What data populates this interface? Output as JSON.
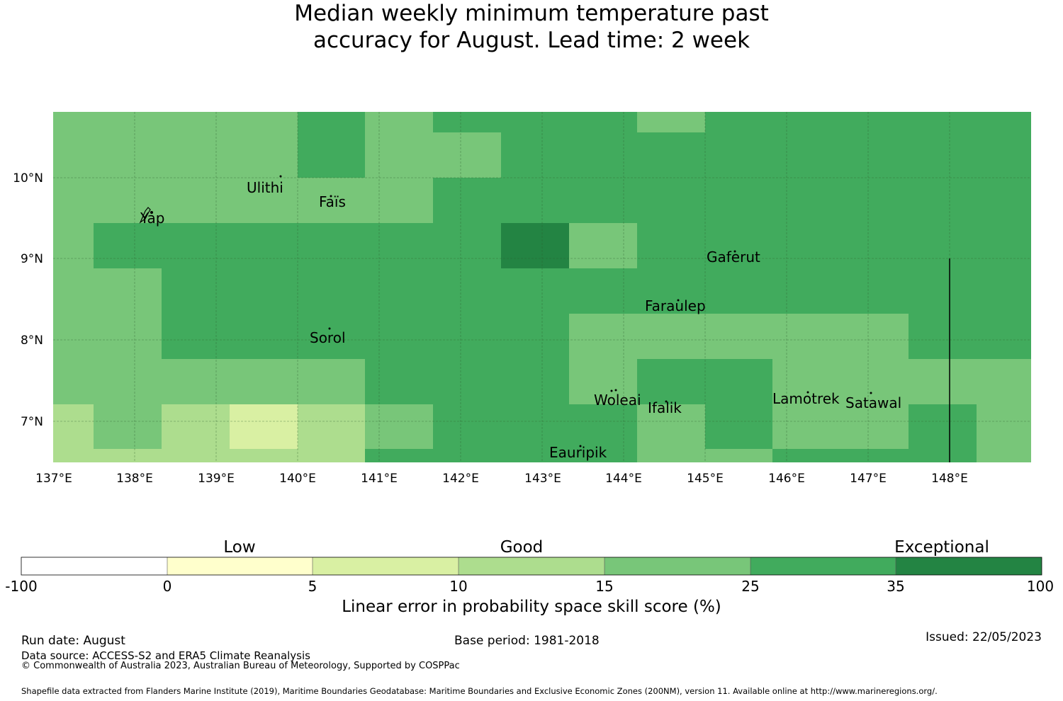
{
  "title": {
    "line1": "Median weekly minimum temperature past",
    "line2": "accuracy for August. Lead time: 2 week"
  },
  "map": {
    "lat_ticks": [
      "10°N",
      "9°N",
      "8°N",
      "7°N"
    ],
    "lon_ticks": [
      "137°E",
      "138°E",
      "139°E",
      "140°E",
      "141°E",
      "142°E",
      "143°E",
      "144°E",
      "145°E",
      "146°E",
      "147°E",
      "148°E"
    ],
    "places": [
      "Ulithi",
      "Faïs",
      "Yap",
      "Gaferut",
      "Faraulep",
      "Sorol",
      "Woleai",
      "Ifalik",
      "Lamotrek",
      "Satawal",
      "Eauripik"
    ]
  },
  "colorbar": {
    "categories": [
      "Low",
      "Good",
      "Exceptional"
    ],
    "ticks": [
      "-100",
      "0",
      "5",
      "10",
      "15",
      "25",
      "35",
      "100"
    ],
    "colors": [
      "#ffffff",
      "#ffffcc",
      "#d9f0a3",
      "#addd8e",
      "#78c679",
      "#41ab5d",
      "#238443"
    ],
    "label": "Linear error in probability space skill score (%)"
  },
  "footer": {
    "run_date": "Run date: August",
    "base_period": "Base period: 1981-2018",
    "issued": "Issued: 22/05/2023",
    "data_source": "Data source: ACCESS-S2 and ERA5 Climate Reanalysis",
    "copyright": "© Commonwealth of Australia 2023, Australian Bureau of Meteorology, Supported by COSPPac",
    "shapefile": "Shapefile data extracted from Flanders Marine Institute (2019), Maritime Boundaries Geodatabase: Maritime Boundaries and Exclusive Economic Zones (200NM), version 11. Available online at http://www.marineregions.org/."
  }
}
